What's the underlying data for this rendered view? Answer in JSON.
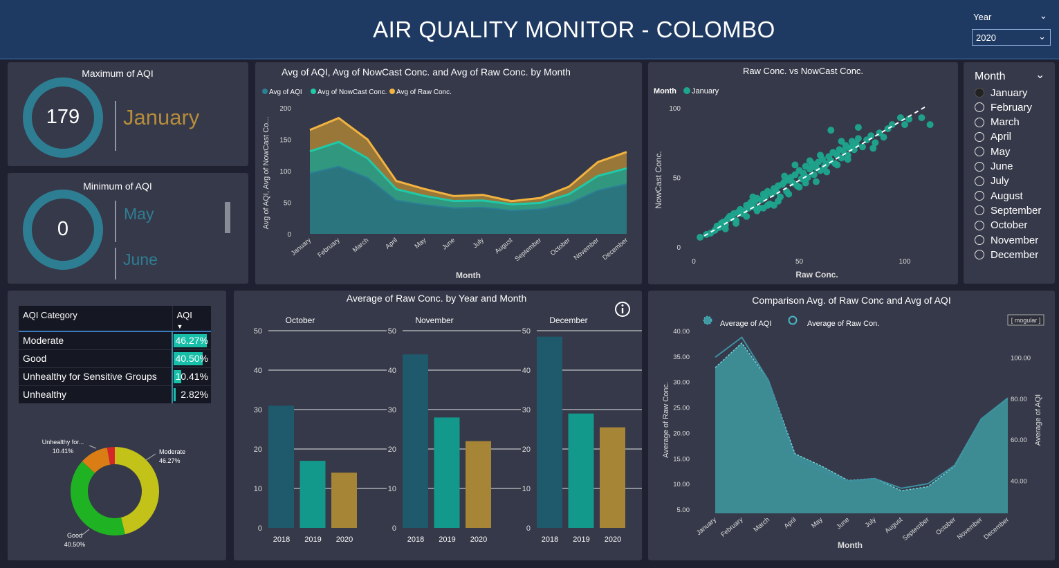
{
  "header": {
    "title": "AIR QUALITY MONITOR -  COLOMBO",
    "year_label": "Year",
    "year_value": "2020"
  },
  "kpi_max": {
    "title": "Maximum of AQI",
    "value": "179",
    "month": "January"
  },
  "kpi_min": {
    "title": "Minimum of AQI",
    "value": "0",
    "months": [
      "May",
      "June"
    ]
  },
  "month_slicer": {
    "title": "Month",
    "selected": "January",
    "options": [
      "January",
      "February",
      "March",
      "April",
      "May",
      "June",
      "July",
      "August",
      "September",
      "October",
      "November",
      "December"
    ]
  },
  "aqi_table": {
    "headers": [
      "AQI Category",
      "AQI"
    ],
    "rows": [
      {
        "category": "Moderate",
        "value": "46.27%",
        "pct": 46.27
      },
      {
        "category": "Good",
        "value": "40.50%",
        "pct": 40.5
      },
      {
        "category": "Unhealthy for Sensitive Groups",
        "value": "10.41%",
        "pct": 10.41
      },
      {
        "category": "Unhealthy",
        "value": "2.82%",
        "pct": 2.82
      }
    ]
  },
  "chart_data": [
    {
      "type": "area",
      "title": "Avg of AQI, Avg of NowCast Conc. and Avg of Raw Conc. by Month",
      "xlabel": "Month",
      "ylabel": "Avg of AQI, Avg of NowCast Co...",
      "ylim": [
        0,
        200
      ],
      "yticks": [
        0,
        50,
        100,
        150,
        200
      ],
      "legend_position": "top-left",
      "categories": [
        "January",
        "February",
        "March",
        "April",
        "May",
        "June",
        "July",
        "August",
        "September",
        "October",
        "November",
        "December"
      ],
      "series": [
        {
          "name": "Avg of AQI",
          "color": "#2b7f95",
          "values": [
            96,
            107,
            89,
            53,
            46,
            41,
            42,
            37,
            39,
            48,
            69,
            79
          ]
        },
        {
          "name": "Avg of NowCast Conc.",
          "color": "#20c9a8",
          "values": [
            131,
            146,
            120,
            71,
            60,
            52,
            53,
            47,
            49,
            63,
            92,
            104
          ]
        },
        {
          "name": "Avg of Raw Conc.",
          "color": "#f2b340",
          "values": [
            165,
            184,
            150,
            84,
            71,
            60,
            62,
            52,
            57,
            75,
            114,
            130
          ]
        }
      ]
    },
    {
      "type": "scatter",
      "title": "Raw Conc. vs NowCast Conc.",
      "xlabel": "Raw Conc.",
      "ylabel": "NowCast Conc.",
      "xlim": [
        0,
        110
      ],
      "ylim": [
        0,
        100
      ],
      "xticks": [
        0,
        50,
        100
      ],
      "yticks": [
        0,
        50,
        100
      ],
      "legend_title": "Month",
      "legend_position": "top-left",
      "series": [
        {
          "name": "January",
          "color": "#1da58e",
          "points": [
            [
              3,
              7
            ],
            [
              6,
              9
            ],
            [
              8,
              10
            ],
            [
              10,
              12
            ],
            [
              11,
              15
            ],
            [
              12,
              14
            ],
            [
              13,
              17
            ],
            [
              14,
              18
            ],
            [
              15,
              16
            ],
            [
              16,
              20
            ],
            [
              17,
              22
            ],
            [
              18,
              21
            ],
            [
              19,
              24
            ],
            [
              20,
              19
            ],
            [
              21,
              25
            ],
            [
              22,
              27
            ],
            [
              23,
              24
            ],
            [
              24,
              26
            ],
            [
              25,
              30
            ],
            [
              26,
              28
            ],
            [
              27,
              32
            ],
            [
              28,
              29
            ],
            [
              29,
              33
            ],
            [
              30,
              35
            ],
            [
              31,
              28
            ],
            [
              32,
              34
            ],
            [
              33,
              38
            ],
            [
              34,
              36
            ],
            [
              35,
              40
            ],
            [
              36,
              31
            ],
            [
              37,
              38
            ],
            [
              38,
              42
            ],
            [
              39,
              40
            ],
            [
              40,
              44
            ],
            [
              41,
              36
            ],
            [
              42,
              45
            ],
            [
              43,
              47
            ],
            [
              44,
              40
            ],
            [
              45,
              48
            ],
            [
              46,
              50
            ],
            [
              47,
              46
            ],
            [
              48,
              52
            ],
            [
              49,
              44
            ],
            [
              50,
              55
            ],
            [
              51,
              49
            ],
            [
              52,
              53
            ],
            [
              53,
              58
            ],
            [
              54,
              50
            ],
            [
              55,
              56
            ],
            [
              56,
              60
            ],
            [
              57,
              52
            ],
            [
              58,
              57
            ],
            [
              59,
              61
            ],
            [
              60,
              55
            ],
            [
              61,
              63
            ],
            [
              62,
              58
            ],
            [
              63,
              60
            ],
            [
              64,
              65
            ],
            [
              65,
              62
            ],
            [
              66,
              68
            ],
            [
              67,
              60
            ],
            [
              68,
              66
            ],
            [
              69,
              70
            ],
            [
              70,
              64
            ],
            [
              71,
              69
            ],
            [
              72,
              73
            ],
            [
              73,
              66
            ],
            [
              74,
              71
            ],
            [
              75,
              76
            ],
            [
              76,
              70
            ],
            [
              77,
              74
            ],
            [
              78,
              78
            ],
            [
              80,
              72
            ],
            [
              82,
              77
            ],
            [
              84,
              80
            ],
            [
              86,
              75
            ],
            [
              88,
              82
            ],
            [
              90,
              79
            ],
            [
              92,
              85
            ],
            [
              94,
              88
            ],
            [
              98,
              93
            ],
            [
              102,
              92
            ],
            [
              108,
              93
            ],
            [
              112,
              88
            ],
            [
              85,
              71
            ],
            [
              70,
              76
            ],
            [
              60,
              66
            ],
            [
              55,
              62
            ],
            [
              45,
              38
            ],
            [
              40,
              33
            ],
            [
              35,
              30
            ],
            [
              30,
              26
            ],
            [
              25,
              22
            ],
            [
              20,
              17
            ],
            [
              15,
              13
            ],
            [
              65,
              84
            ],
            [
              75,
              72
            ],
            [
              100,
              88
            ],
            [
              78,
              86
            ],
            [
              50,
              43
            ],
            [
              58,
              47
            ],
            [
              63,
              54
            ],
            [
              68,
              59
            ],
            [
              73,
              63
            ],
            [
              38,
              30
            ],
            [
              28,
              36
            ],
            [
              33,
              28
            ],
            [
              43,
              51
            ],
            [
              48,
              59
            ],
            [
              53,
              46
            ]
          ]
        }
      ],
      "trend_line": {
        "from": [
          5,
          8
        ],
        "to": [
          110,
          101
        ]
      }
    },
    {
      "type": "bar",
      "title": "Average of Raw Conc. by Year and Month",
      "ylim": [
        0,
        50
      ],
      "yticks": [
        0,
        10,
        20,
        30,
        40,
        50
      ],
      "categories": [
        "2018",
        "2019",
        "2020"
      ],
      "colors": [
        "#1e5a6b",
        "#12998b",
        "#a78536"
      ],
      "panels": [
        {
          "name": "October",
          "values": [
            31,
            17,
            14
          ]
        },
        {
          "name": "November",
          "values": [
            44,
            28,
            22
          ]
        },
        {
          "name": "December",
          "values": [
            48.5,
            29,
            25.5
          ]
        }
      ]
    },
    {
      "type": "pie",
      "subtype": "donut",
      "categories": [
        "Moderate",
        "Good",
        "Unhealthy for...",
        "Unhealthy"
      ],
      "values": [
        46.27,
        40.5,
        10.41,
        2.82
      ],
      "colors": [
        "#c3c219",
        "#1fb324",
        "#d97d14",
        "#d52727"
      ],
      "labels": [
        {
          "name": "Moderate",
          "value": "46.27%"
        },
        {
          "name": "Good",
          "value": "40.50%"
        },
        {
          "name": "Unhealthy for...",
          "value": "10.41%"
        }
      ]
    },
    {
      "type": "area",
      "title": "Comparison Avg. of Raw Conc and Avg of AQI",
      "xlabel": "Month",
      "ylabel": "Average of Raw Conc.",
      "y2label": "Average of AQI",
      "ylim": [
        5,
        40
      ],
      "yticks": [
        "5.00",
        "10.00",
        "15.00",
        "20.00",
        "25.00",
        "30.00",
        "35.00",
        "40.00"
      ],
      "y2lim": [
        26,
        113
      ],
      "y2ticks": [
        "40.00",
        "60.00",
        "80.00",
        "100.00"
      ],
      "badge": "[ mogular ]",
      "categories": [
        "January",
        "February",
        "March",
        "April",
        "May",
        "June",
        "July",
        "August",
        "September",
        "October",
        "November",
        "December"
      ],
      "series": [
        {
          "name": "Average of AQI",
          "color": "#3e9aa0",
          "values": [
            95,
            107,
            89,
            53,
            47,
            40,
            41,
            35,
            37,
            47,
            70,
            80
          ]
        },
        {
          "name": "Average of Raw Con.",
          "color": "#48b7c6",
          "values": [
            34.8,
            38.7,
            30.3,
            15.0,
            12.5,
            10.5,
            11.0,
            9.1,
            10.0,
            13.6,
            22.7,
            26.8
          ]
        }
      ]
    }
  ]
}
